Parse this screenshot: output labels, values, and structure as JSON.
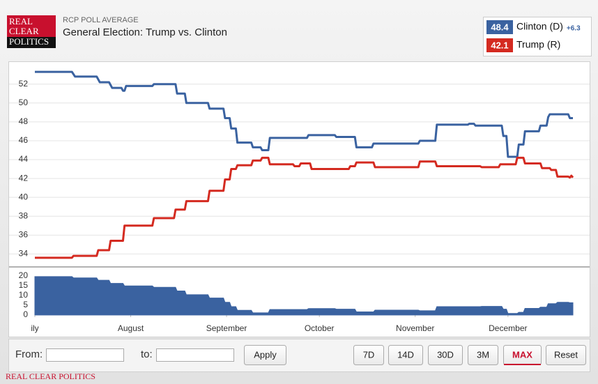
{
  "header": {
    "logo": [
      "REAL",
      "CLEAR",
      "POLITICS"
    ],
    "kicker": "RCP POLL AVERAGE",
    "title": "General Election: Trump vs. Clinton"
  },
  "chart_data": [
    {
      "type": "line",
      "xlim": [
        0,
        174
      ],
      "ylim": [
        32.7,
        53.9
      ],
      "yticks": [
        34,
        36,
        38,
        40,
        42,
        44,
        46,
        48,
        50,
        52
      ],
      "grid": true,
      "series": [
        {
          "name": "Clinton (D)",
          "color": "#3a62a0",
          "latest": 48.4,
          "change": "+6.3",
          "x": [
            0,
            12,
            13,
            20,
            21,
            24,
            25,
            28,
            28.5,
            29,
            29.5,
            38,
            38.5,
            45.5,
            46,
            48.5,
            49,
            56,
            56.5,
            61,
            61.5,
            63,
            63.5,
            65,
            65.5,
            70,
            70.5,
            73,
            73.5,
            75.5,
            76,
            88,
            88.5,
            97,
            97.5,
            103.5,
            104,
            109,
            109.5,
            124,
            124.5,
            129.5,
            130,
            140,
            140.5,
            142,
            142.5,
            151,
            151.5,
            152.5,
            153,
            156,
            156.5,
            158,
            158.5,
            163,
            163.5,
            165.5,
            166,
            166.5,
            172.5,
            173,
            174
          ],
          "values": [
            53.3,
            53.3,
            52.8,
            52.8,
            52.2,
            52.2,
            51.6,
            51.6,
            51.3,
            51.3,
            51.8,
            51.8,
            52.0,
            52.0,
            51.0,
            51.0,
            50.0,
            50.0,
            49.4,
            49.4,
            48.4,
            48.4,
            47.3,
            47.3,
            45.8,
            45.8,
            45.3,
            45.3,
            45.0,
            45.0,
            46.3,
            46.3,
            46.6,
            46.6,
            46.4,
            46.4,
            45.3,
            45.3,
            45.7,
            45.7,
            46.0,
            46.0,
            47.7,
            47.7,
            47.8,
            47.8,
            47.6,
            47.6,
            46.5,
            46.5,
            44.3,
            44.3,
            45.6,
            45.6,
            47.0,
            47.0,
            47.6,
            47.6,
            48.5,
            48.8,
            48.8,
            48.4,
            48.4
          ]
        },
        {
          "name": "Trump (R)",
          "color": "#d42a20",
          "latest": 42.1,
          "x": [
            0,
            12,
            12.5,
            20,
            20.5,
            24,
            24.5,
            28.5,
            29,
            38,
            38.5,
            45,
            45.5,
            48.5,
            49,
            56,
            56.5,
            61,
            61.5,
            63,
            63.5,
            65,
            65.5,
            70,
            70.5,
            73,
            73.5,
            75.5,
            76,
            83.5,
            84,
            85.5,
            86,
            89,
            89.5,
            101.5,
            102,
            103.5,
            104,
            109.5,
            110,
            124,
            124.5,
            129.5,
            130,
            144,
            144.5,
            150,
            150.5,
            155.5,
            156,
            158,
            158.5,
            163.5,
            164,
            166.5,
            167,
            168.5,
            169,
            172.5,
            173,
            173.5,
            174
          ],
          "values": [
            33.6,
            33.6,
            33.8,
            33.8,
            34.4,
            34.4,
            35.4,
            35.4,
            37.0,
            37.0,
            37.8,
            37.8,
            38.7,
            38.7,
            39.6,
            39.6,
            40.7,
            40.7,
            41.9,
            41.9,
            43.0,
            43.0,
            43.4,
            43.4,
            43.9,
            43.9,
            44.2,
            44.2,
            43.5,
            43.5,
            43.3,
            43.3,
            43.6,
            43.6,
            43.0,
            43.0,
            43.3,
            43.3,
            43.7,
            43.7,
            43.2,
            43.2,
            43.8,
            43.8,
            43.3,
            43.3,
            43.2,
            43.2,
            43.5,
            43.5,
            44.2,
            44.2,
            43.6,
            43.6,
            43.1,
            43.1,
            42.9,
            42.9,
            42.2,
            42.2,
            42.1,
            42.3,
            42.1
          ]
        }
      ]
    },
    {
      "type": "area",
      "xlim": [
        0,
        174
      ],
      "ylim": [
        0,
        22.5
      ],
      "yticks": [
        0,
        5,
        10,
        15,
        20
      ],
      "grid": false,
      "xticks": [
        {
          "value": 0,
          "label": "ily"
        },
        {
          "value": 31,
          "label": "August"
        },
        {
          "value": 62,
          "label": "September"
        },
        {
          "value": 92,
          "label": "October"
        },
        {
          "value": 123,
          "label": "November"
        },
        {
          "value": 153,
          "label": "December"
        }
      ],
      "series": [
        {
          "color": "#3a62a0",
          "x": [
            0,
            12,
            12.5,
            20,
            20.5,
            24,
            24.5,
            28.5,
            29,
            38,
            38.5,
            45.5,
            46,
            48.5,
            49,
            56,
            56.5,
            61,
            61.5,
            63,
            63.5,
            65,
            65.5,
            70,
            70.5,
            75.5,
            76,
            88,
            88.5,
            97,
            97.5,
            103.5,
            104,
            109.5,
            110,
            124,
            124.5,
            129.5,
            130,
            144,
            144.5,
            151,
            151.5,
            152.5,
            153,
            156,
            156.5,
            158,
            158.5,
            163,
            163.5,
            165.5,
            166,
            168.5,
            169,
            172.5,
            173,
            174
          ],
          "values": [
            19.7,
            19.7,
            19.0,
            19.0,
            17.8,
            17.8,
            16.2,
            16.2,
            14.9,
            14.9,
            14.2,
            14.2,
            12.3,
            12.3,
            10.4,
            10.4,
            8.7,
            8.7,
            6.5,
            6.5,
            4.3,
            4.3,
            2.4,
            2.4,
            1.1,
            1.1,
            2.8,
            2.8,
            3.3,
            3.3,
            3.0,
            3.0,
            1.6,
            1.6,
            2.5,
            2.5,
            2.2,
            2.2,
            4.3,
            4.3,
            4.4,
            4.4,
            3.0,
            3.0,
            0.8,
            0.8,
            1.4,
            1.4,
            3.4,
            3.4,
            4.0,
            4.0,
            5.8,
            5.8,
            6.5,
            6.5,
            6.3,
            6.3
          ]
        }
      ]
    }
  ],
  "controls": {
    "from": "From:",
    "to": "to:",
    "apply": "Apply",
    "ranges": [
      "7D",
      "14D",
      "30D",
      "3M",
      "MAX",
      "Reset"
    ]
  },
  "footer": "REAL CLEAR POLITICS"
}
